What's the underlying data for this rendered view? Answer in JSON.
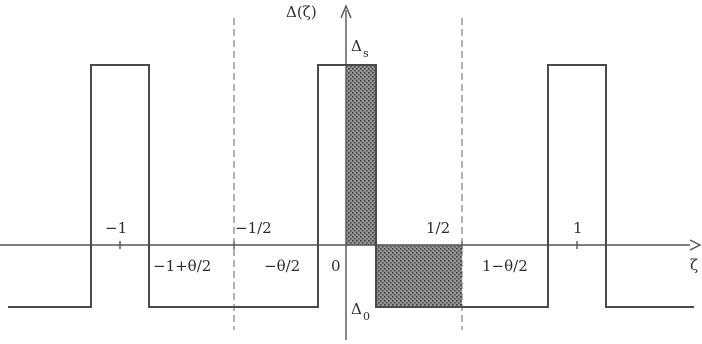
{
  "diagram": {
    "y_axis_label": "Δ(ζ)",
    "x_axis_label": "ζ",
    "labels": {
      "delta_s": "Δ",
      "delta_s_sub": "s",
      "delta_0": "Δ",
      "delta_0_sub": "0",
      "origin": "0",
      "minus_one": "−1",
      "minus_half": "−1/2",
      "half": "1/2",
      "one": "1",
      "minus_one_plus_theta_half": "−1+θ/2",
      "minus_theta_half": "−θ/2",
      "one_minus_theta_half": "1−θ/2"
    },
    "colors": {
      "line": "#4a4a4a",
      "shading": "#6e6e6e",
      "background": "#ffffff"
    }
  }
}
